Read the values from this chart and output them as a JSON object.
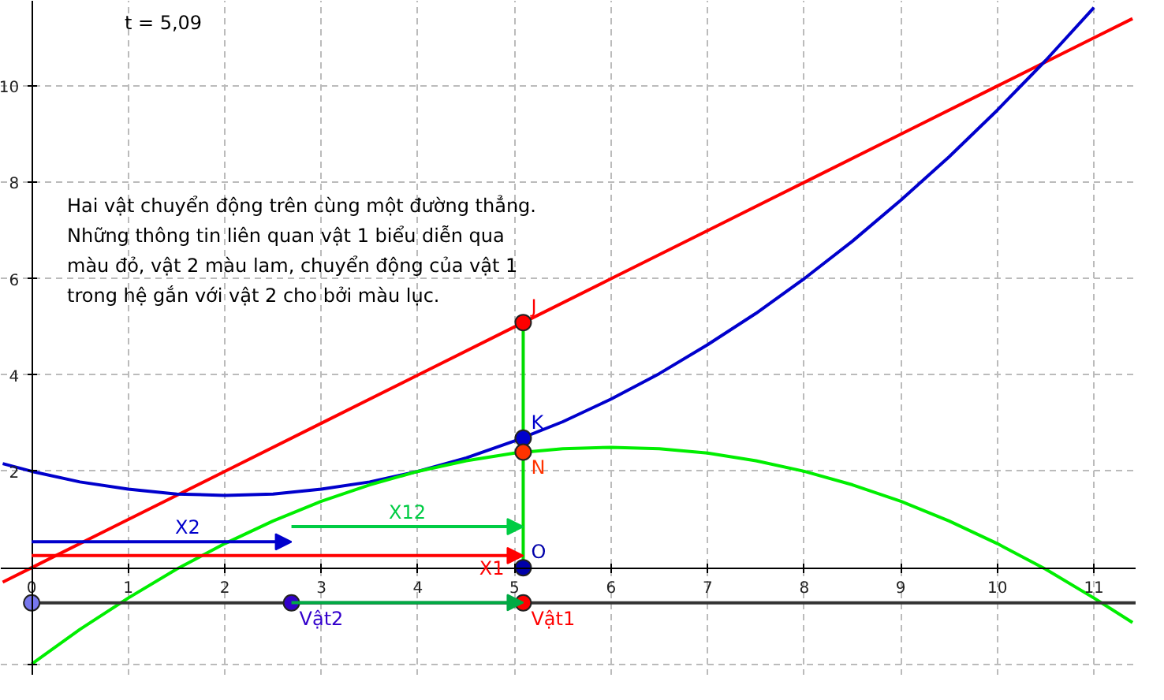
{
  "chart_data": {
    "type": "line",
    "xlim": [
      -0.32,
      11.44
    ],
    "ylim": [
      -2.24,
      11.77
    ],
    "xticks": [
      0,
      1,
      2,
      3,
      4,
      5,
      6,
      7,
      8,
      9,
      10,
      11
    ],
    "yticks": [
      {
        "value": -2,
        "label": null
      },
      {
        "value": 0,
        "label": null
      },
      2,
      4,
      6,
      8,
      10
    ],
    "grid": true,
    "annotations": [
      "t = 5,09",
      "Hai vật chuyển động trên cùng một đường thẳng.\nNhững thông tin liên quan vật 1 biểu diễn qua\nmàu đỏ, vật 2 màu lam, chuyển động của vật 1\ntrong hệ gắn với vật 2 cho bởi màu lục.",
      {
        "text": "X1",
        "x": 5.09,
        "y": 0.25
      },
      "X2",
      "X12"
    ],
    "series": [
      {
        "color": "#ff0000",
        "x": [
          -0.3,
          0,
          1,
          2,
          3,
          4,
          5,
          6,
          7,
          8,
          9,
          10,
          11,
          11.4
        ],
        "values": [
          -0.3,
          0,
          1,
          2,
          3,
          4,
          5,
          6,
          7,
          8,
          9,
          10,
          11,
          11.4
        ]
      },
      {
        "color": "#0000cc",
        "x": [
          -0.3,
          0,
          0.5,
          1,
          1.5,
          2,
          2.5,
          3,
          3.5,
          4,
          4.5,
          5,
          5.5,
          6,
          6.5,
          7,
          7.5,
          8,
          8.5,
          9,
          9.5,
          10,
          10.5,
          11
        ],
        "values": [
          2.16,
          2,
          1.78,
          1.63,
          1.53,
          1.5,
          1.53,
          1.63,
          1.78,
          2,
          2.28,
          2.63,
          3.03,
          3.5,
          4.03,
          4.63,
          5.28,
          6,
          6.78,
          7.63,
          8.53,
          9.5,
          10.53,
          11.63
        ]
      },
      {
        "color": "#00ee00",
        "x": [
          0,
          0.5,
          1,
          1.5,
          2,
          2.5,
          3,
          3.5,
          4,
          4.5,
          5,
          5.5,
          6,
          6.5,
          7,
          7.5,
          8,
          8.5,
          9,
          9.5,
          10,
          10.5,
          11,
          11.4
        ],
        "values": [
          -2,
          -1.28,
          -0.63,
          -0.03,
          0.5,
          0.97,
          1.38,
          1.72,
          2,
          2.22,
          2.38,
          2.47,
          2.5,
          2.47,
          2.38,
          2.22,
          2,
          1.72,
          1.38,
          0.97,
          0.5,
          -0.03,
          -0.63,
          -1.14
        ]
      },
      {
        "color": "#00dd00",
        "x": [
          5.09,
          5.09
        ],
        "values": [
          0,
          5.09
        ]
      },
      {
        "color": "#333333",
        "x": [
          0,
          11.44
        ],
        "values": [
          -0.73,
          -0.73
        ]
      },
      {
        "type": "scatter",
        "name": "J",
        "color": "#ff0000",
        "x": [
          5.09
        ],
        "values": [
          5.09
        ]
      },
      {
        "type": "scatter",
        "name": "K",
        "color": "#0000cc",
        "x": [
          5.09
        ],
        "values": [
          2.69
        ]
      },
      {
        "type": "scatter",
        "name": "N",
        "color": "#ff3300",
        "x": [
          5.09
        ],
        "values": [
          2.4
        ]
      },
      {
        "type": "scatter",
        "name": "O",
        "color": "#0000aa",
        "x": [
          5.09
        ],
        "values": [
          0
        ]
      },
      {
        "type": "scatter",
        "color": "#7777ee",
        "x": [
          0
        ],
        "values": [
          -0.73
        ]
      },
      {
        "type": "scatter",
        "name": "Vật2",
        "color": "#3300cc",
        "x": [
          2.69
        ],
        "values": [
          -0.73
        ]
      },
      {
        "type": "scatter",
        "name": "Vật1",
        "color": "#ff0000",
        "x": [
          5.09
        ],
        "values": [
          -0.73
        ]
      }
    ]
  }
}
